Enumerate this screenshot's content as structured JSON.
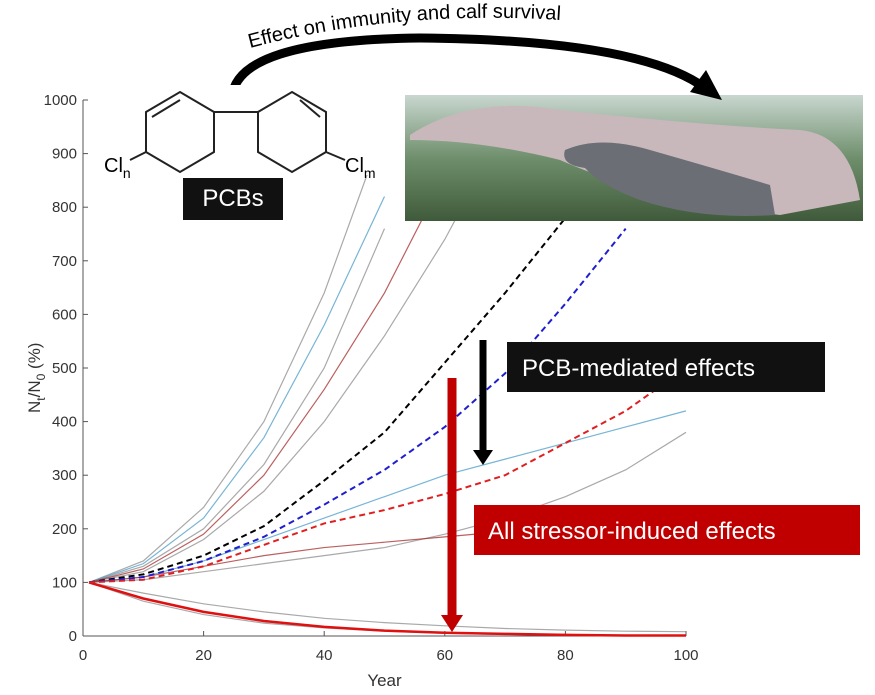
{
  "chart_data": {
    "type": "line",
    "title": "Effect  on immunity and calf survival",
    "x_label": "Year",
    "y_label_parts": [
      "N",
      "t",
      "/N",
      "0",
      " (%)"
    ],
    "xlim": [
      0,
      100
    ],
    "xticks": [
      0,
      20,
      40,
      60,
      80,
      100
    ],
    "ylim": [
      0,
      1000
    ],
    "yticks": [
      0,
      100,
      200,
      300,
      400,
      500,
      600,
      700,
      800,
      900,
      1000
    ],
    "x": [
      1,
      10,
      20,
      30,
      40,
      50,
      60,
      70,
      80,
      90,
      100
    ],
    "series": [
      {
        "color": "#8c8c8c",
        "values": [
          100,
          140,
          240,
          400,
          640,
          950,
          null,
          null,
          null,
          null,
          null
        ]
      },
      {
        "color": "#8c8c8c",
        "values": [
          100,
          130,
          200,
          320,
          500,
          760,
          null,
          null,
          null,
          null,
          null
        ]
      },
      {
        "color": "#8c8c8c",
        "values": [
          100,
          120,
          180,
          270,
          400,
          560,
          740,
          950,
          null,
          null,
          null
        ]
      },
      {
        "color": "#8c8c8c",
        "values": [
          100,
          105,
          120,
          135,
          150,
          165,
          190,
          220,
          260,
          310,
          380
        ]
      },
      {
        "color": "#4a9cc8",
        "values": [
          100,
          135,
          220,
          370,
          580,
          820,
          null,
          null,
          null,
          null,
          null
        ]
      },
      {
        "color": "#4a9cc8",
        "values": [
          100,
          110,
          140,
          180,
          220,
          260,
          300,
          330,
          360,
          390,
          420
        ]
      },
      {
        "color": "#a52a2a",
        "values": [
          100,
          125,
          190,
          300,
          460,
          640,
          860,
          null,
          null,
          null,
          null
        ]
      },
      {
        "color": "#a52a2a",
        "values": [
          100,
          110,
          130,
          150,
          165,
          175,
          185,
          195,
          205,
          220,
          240
        ]
      },
      {
        "color": "#8c8c8c",
        "values": [
          100,
          80,
          60,
          45,
          33,
          25,
          19,
          14,
          11,
          9,
          8
        ]
      },
      {
        "color": "#8c8c8c",
        "values": [
          100,
          65,
          40,
          24,
          15,
          9,
          5,
          3,
          2,
          1,
          1
        ]
      },
      {
        "color": "#e01010",
        "width": 2.5,
        "values": [
          100,
          70,
          45,
          28,
          17,
          10,
          6,
          4,
          2,
          1,
          1
        ]
      },
      {
        "color": "#000000",
        "dashed": true,
        "width": 2,
        "values": [
          100,
          115,
          150,
          205,
          290,
          380,
          510,
          640,
          780,
          null,
          null
        ]
      },
      {
        "color": "#1f1fd0",
        "dashed": true,
        "width": 2,
        "values": [
          100,
          110,
          140,
          185,
          245,
          310,
          390,
          490,
          620,
          760,
          null
        ]
      },
      {
        "color": "#e02020",
        "dashed": true,
        "width": 2,
        "values": [
          100,
          105,
          130,
          170,
          210,
          235,
          265,
          300,
          360,
          420,
          500
        ]
      }
    ],
    "molecule": {
      "label": "PCBs",
      "left_group": [
        "Cl",
        "n"
      ],
      "right_group": [
        "Cl",
        "m"
      ]
    },
    "annotations": [
      "PCB-mediated effects",
      "All stressor-induced effects"
    ]
  }
}
